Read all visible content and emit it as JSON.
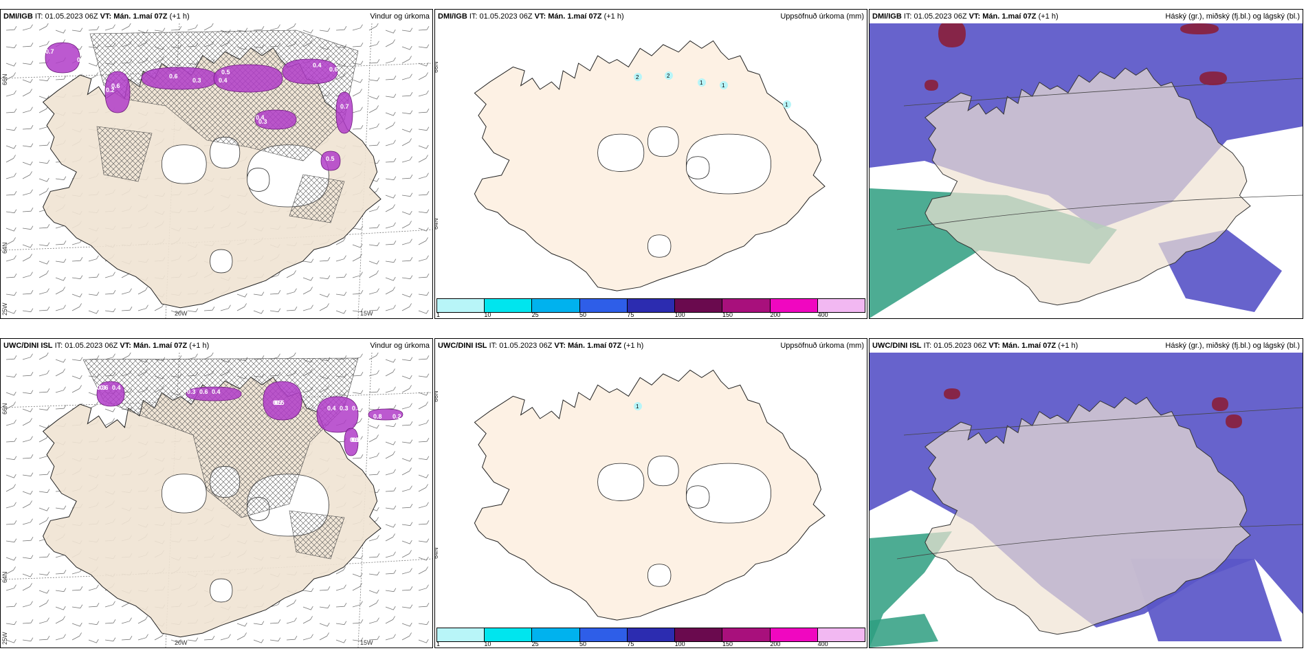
{
  "issue_label": "IT:",
  "issue_time": "01.05.2023 06Z",
  "valid_label": "VT:",
  "valid_time": "Mán. 1.maí 07Z",
  "lead": "(+1 h)",
  "rows": [
    {
      "model": "DMI/IGB",
      "panels": [
        {
          "type": "wind",
          "title": "Vindur og úrkoma",
          "grid_labels": {
            "lat_66": "66N",
            "lat_64": "64N",
            "lon_25": "25W",
            "lon_20": "20W",
            "lon_15": "15W"
          },
          "precip_labels": [
            "0.7",
            "0.2",
            "0.3",
            "0.5",
            "0.6",
            "0.3",
            "0.7",
            "0.5",
            "0.4",
            "0.6",
            "0.6",
            "0.4",
            "0.4",
            "0.4"
          ]
        },
        {
          "type": "accum",
          "title": "Uppsöfnuð úrkoma (mm)",
          "grid_labels": {
            "lat_66": "66N",
            "lat_64": "64N"
          },
          "point_values": [
            "2",
            "2",
            "1",
            "1",
            "1"
          ]
        },
        {
          "type": "cloud",
          "title": "Háský (gr.), miðský (fj.bl.) og lágský (bl.)"
        }
      ]
    },
    {
      "model": "UWC/DINI ISL",
      "panels": [
        {
          "type": "wind",
          "title": "Vindur og úrkoma",
          "grid_labels": {
            "lat_66": "66N",
            "lat_64": "64N",
            "lon_25": "25W",
            "lon_20": "20W",
            "lon_15": "15W"
          },
          "precip_labels": [
            "0.3",
            "0.4",
            "0.5",
            "0.5",
            "0.6",
            "0.2",
            "0.4",
            "0.6",
            "0.7",
            "0.3",
            "0.5",
            "0.8",
            "0.6",
            "0.3",
            "0.5",
            "0.4",
            "0.6"
          ]
        },
        {
          "type": "accum",
          "title": "Uppsöfnuð úrkoma (mm)",
          "grid_labels": {
            "lat_66": "66N",
            "lat_64": "64N"
          },
          "point_values": [
            "1"
          ]
        },
        {
          "type": "cloud",
          "title": "Háský (gr.), miðský (fj.bl.) og lágský (bl.)"
        }
      ]
    }
  ],
  "legend": {
    "colors": [
      "#b8f5f8",
      "#00e5ee",
      "#00b2ee",
      "#2e5ee8",
      "#2c2cb0",
      "#6a0a4e",
      "#a8107c",
      "#f007c0",
      "#f2b8f2"
    ],
    "ticks": [
      "1",
      "10",
      "25",
      "50",
      "75",
      "100",
      "150",
      "200",
      "400"
    ]
  },
  "colors": {
    "land": "#f0e3d3",
    "accum_land": "#fdf1e4",
    "precip": "#b03cc8",
    "cloud_mid": "#5a56c8",
    "cloud_low": "#2e9e80",
    "cloud_high": "#8a1e3a"
  }
}
